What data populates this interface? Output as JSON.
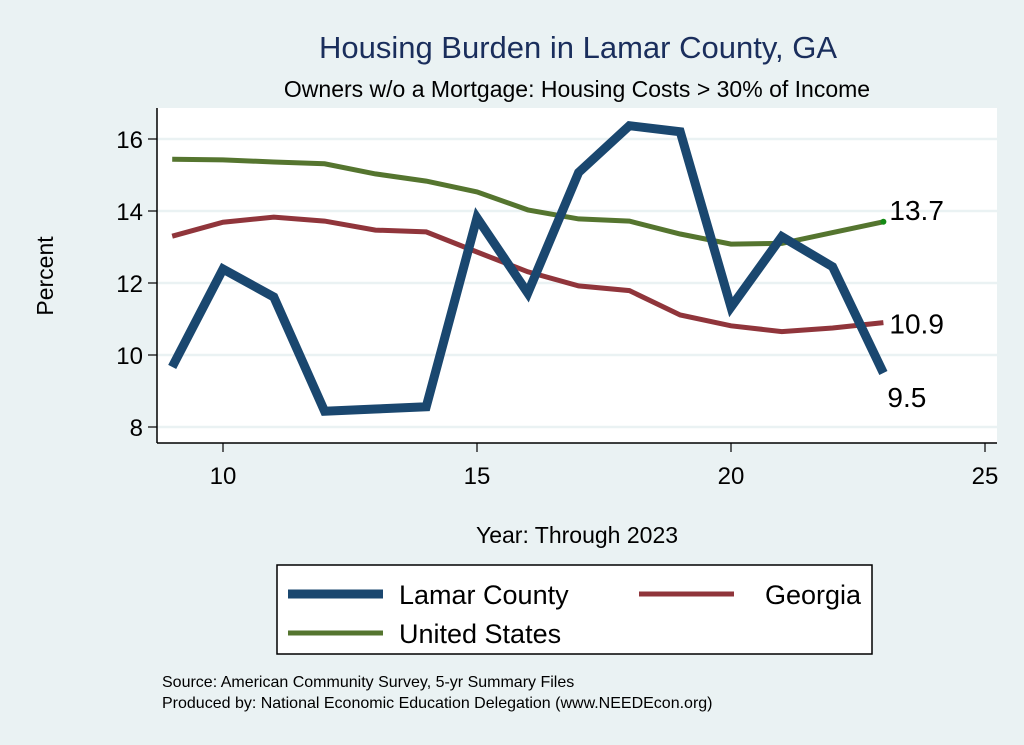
{
  "chart_data": {
    "type": "line",
    "title": "Housing Burden in Lamar County, GA",
    "subtitle": "Owners w/o a Mortgage: Housing Costs > 30% of Income",
    "xlabel": "Year: Through 2023",
    "ylabel": "Percent",
    "xlim": [
      8.7,
      25.3
    ],
    "ylim": [
      7.6,
      16.8
    ],
    "xticks": [
      10,
      15,
      20,
      25
    ],
    "yticks": [
      8,
      10,
      12,
      14,
      16
    ],
    "grid": true,
    "x": [
      9,
      10,
      11,
      12,
      13,
      14,
      15,
      16,
      17,
      18,
      19,
      20,
      21,
      22,
      23
    ],
    "series": [
      {
        "name": "Lamar County",
        "color": "#1a476f",
        "values": [
          9.67,
          12.39,
          11.61,
          8.44,
          8.5,
          8.56,
          13.81,
          11.72,
          15.07,
          16.37,
          16.2,
          11.33,
          13.29,
          12.45,
          9.5
        ],
        "end_label": "9.5"
      },
      {
        "name": "Georgia",
        "color": "#90353b",
        "values": [
          13.3,
          13.69,
          13.83,
          13.72,
          13.47,
          13.42,
          12.86,
          12.31,
          11.92,
          11.79,
          11.11,
          10.81,
          10.65,
          10.75,
          10.9
        ],
        "end_label": "10.9"
      },
      {
        "name": "United States",
        "color": "#55752f",
        "values": [
          15.44,
          15.42,
          15.36,
          15.31,
          15.03,
          14.83,
          14.53,
          14.03,
          13.78,
          13.72,
          13.36,
          13.08,
          13.1,
          13.4,
          13.7
        ],
        "end_label": "13.7"
      }
    ],
    "legend": {
      "placement": "bottom",
      "entries": [
        "Lamar County",
        "Georgia",
        "United States"
      ]
    },
    "footer": [
      "Source: American Community Survey, 5-yr Summary Files",
      "Produced by: National Economic Education Delegation (www.NEEDEcon.org)"
    ]
  },
  "colors": {
    "background": "#eaf2f3",
    "plot_background": "#ffffff",
    "gridline": "#eaf2f3",
    "title": "#1a2e5c"
  }
}
